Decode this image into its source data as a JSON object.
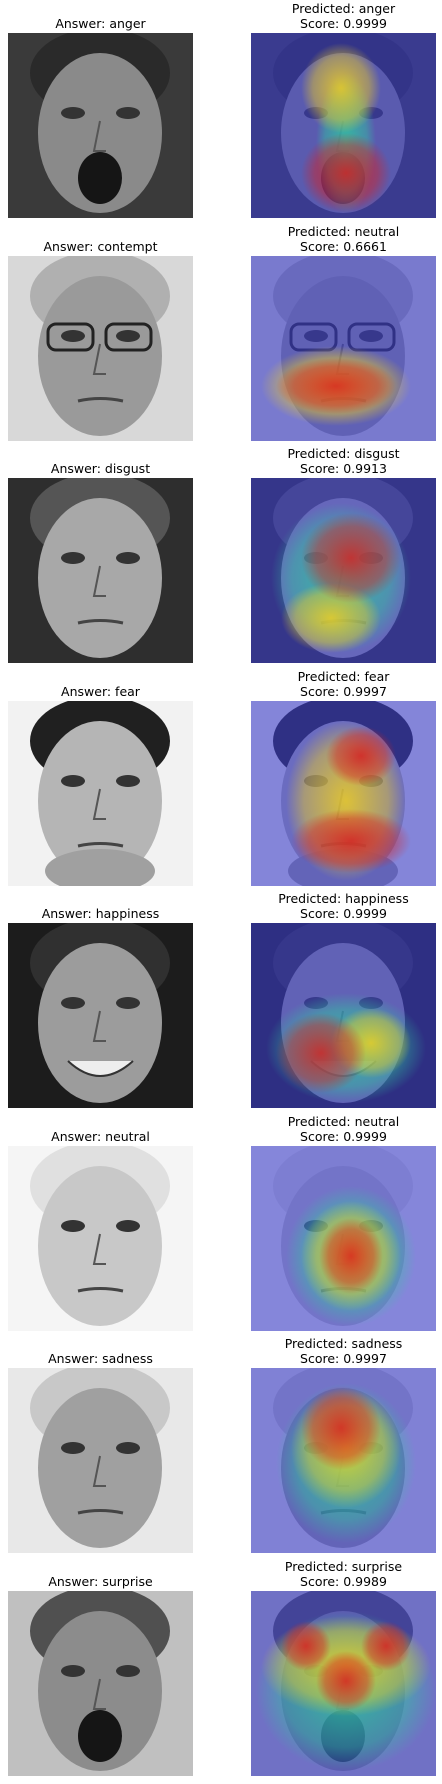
{
  "rows": [
    {
      "answer": "Answer: anger",
      "predicted": "Predicted: anger",
      "score": "Score: 0.9999"
    },
    {
      "answer": "Answer: contempt",
      "predicted": "Predicted: neutral",
      "score": "Score: 0.6661"
    },
    {
      "answer": "Answer: disgust",
      "predicted": "Predicted: disgust",
      "score": "Score: 0.9913"
    },
    {
      "answer": "Answer: fear",
      "predicted": "Predicted: fear",
      "score": "Score: 0.9997"
    },
    {
      "answer": "Answer: happiness",
      "predicted": "Predicted: happiness",
      "score": "Score: 0.9999"
    },
    {
      "answer": "Answer: neutral",
      "predicted": "Predicted: neutral",
      "score": "Score: 0.9999"
    },
    {
      "answer": "Answer: sadness",
      "predicted": "Predicted: sadness",
      "score": "Score: 0.9997"
    },
    {
      "answer": "Answer: surprise",
      "predicted": "Predicted: surprise",
      "score": "Score: 0.9989"
    }
  ],
  "colors": {
    "overlay_base": "#3a3cc8",
    "heat_hot": "#d62020",
    "heat_warm": "#f0d020",
    "heat_mid": "#30c8a0"
  }
}
